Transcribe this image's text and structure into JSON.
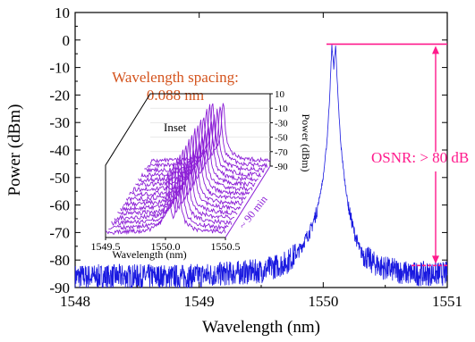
{
  "chart_data": [
    {
      "type": "line",
      "xlabel": "Wavelength (nm)",
      "ylabel": "Power (dBm)",
      "xlim": [
        1548,
        1551
      ],
      "ylim": [
        -90,
        10
      ],
      "xticks": [
        "1548",
        "1549",
        "1550",
        "1551"
      ],
      "yticks": [
        "10",
        "0",
        "-10",
        "-20",
        "-30",
        "-40",
        "-50",
        "-60",
        "-70",
        "-80",
        "-90"
      ],
      "series": [
        {
          "color": "#1a1ae0",
          "x": [
            1548.0,
            1548.3,
            1548.6,
            1548.9,
            1549.2,
            1549.5,
            1549.7,
            1549.8,
            1549.9,
            1549.95,
            1550.0,
            1550.03,
            1550.05,
            1550.07,
            1550.085,
            1550.1,
            1550.12,
            1550.14,
            1550.17,
            1550.2,
            1550.25,
            1550.3,
            1550.4,
            1550.5,
            1550.6,
            1550.7,
            1550.85,
            1551.0
          ],
          "y": [
            -86,
            -86,
            -86,
            -86,
            -85,
            -84,
            -81,
            -77,
            -69,
            -62,
            -50,
            -37,
            -22,
            -2,
            -10,
            -2,
            -22,
            -37,
            -50,
            -60,
            -70,
            -77,
            -81,
            -83,
            -84,
            -85,
            -85,
            -85
          ]
        }
      ],
      "annotations": {
        "spacing_label_line1": "Wavelength spacing:",
        "spacing_label_line2": "0.088 nm",
        "osnr_label": "OSNR: > 80 dB",
        "osnr_top_dbm": -1.5,
        "osnr_bottom_dbm": -82
      },
      "inset": {
        "label": "Inset",
        "xlabel": "Wavelength (nm)",
        "zlabel": "Power (dBm)",
        "depth_label": "~ 90 min",
        "xticks": [
          "1549.5",
          "1550.0",
          "1550.5"
        ],
        "xlim": [
          1549.5,
          1550.5
        ],
        "zticks": [
          "10",
          "-10",
          "-30",
          "-50",
          "-70",
          "-90"
        ],
        "zlim": [
          -90,
          10
        ],
        "trace_count": 16,
        "color": "#8c1fd6"
      }
    }
  ]
}
